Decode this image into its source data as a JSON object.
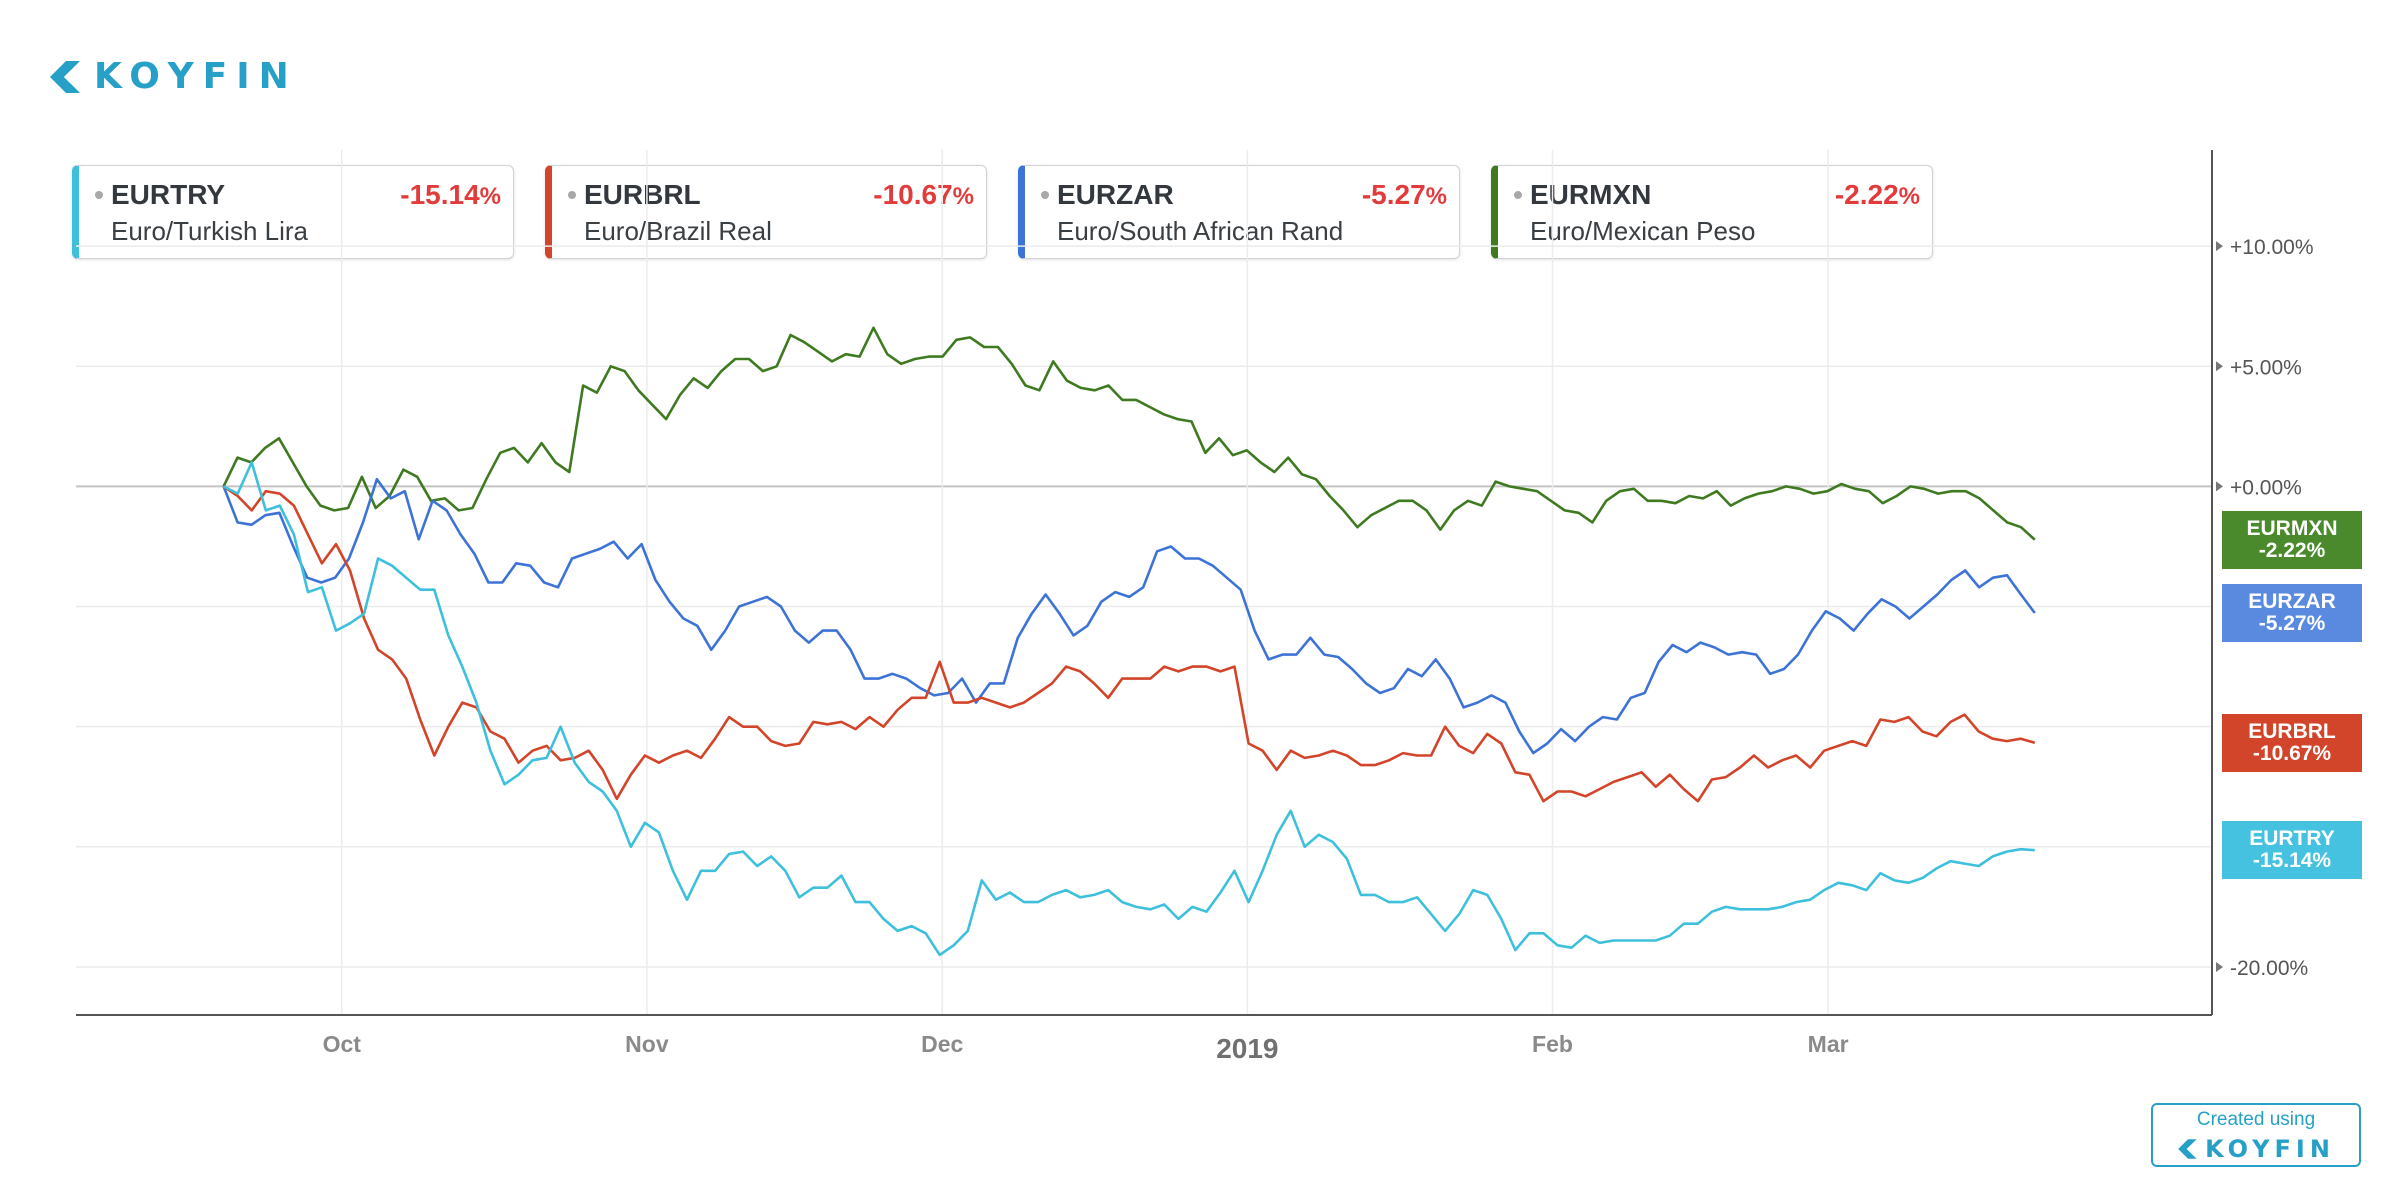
{
  "brand": {
    "name": "KOYFIN",
    "created_label": "Created using",
    "logo_icon": "koyfin-logo-icon",
    "color": "#27a0c7"
  },
  "legend": [
    {
      "symbol": "EURTRY",
      "description": "Euro/Turkish Lira",
      "change": "-15.14",
      "color": "#3ec0dd"
    },
    {
      "symbol": "EURBRL",
      "description": "Euro/Brazil Real",
      "change": "-10.67",
      "color": "#d2452a"
    },
    {
      "symbol": "EURZAR",
      "description": "Euro/South African Rand",
      "change": "-5.27",
      "color": "#3e73d6"
    },
    {
      "symbol": "EURMXN",
      "description": "Euro/Mexican Peso",
      "change": "-2.22",
      "color": "#3f7a21"
    }
  ],
  "badges": [
    {
      "symbol": "EURMXN",
      "value": "-2.22%",
      "color": "#4a8a2c"
    },
    {
      "symbol": "EURZAR",
      "value": "-5.27%",
      "color": "#5a8ae0"
    },
    {
      "symbol": "EURBRL",
      "value": "-10.67%",
      "color": "#d2452a"
    },
    {
      "symbol": "EURTRY",
      "value": "-15.14%",
      "color": "#44c2e0"
    }
  ],
  "chart_data": {
    "type": "line",
    "x_start": "2018-09-19",
    "x_end": "2019-03-22",
    "xlim": [
      "2018-09-04",
      "2019-04-09"
    ],
    "ylim": [
      -22,
      14
    ],
    "unit": "%",
    "yticks": [
      {
        "value": 10,
        "label": "+10.00%"
      },
      {
        "value": 5,
        "label": "+5.00%"
      },
      {
        "value": 0,
        "label": "+0.00%"
      },
      {
        "value": -20,
        "label": "-20.00%"
      }
    ],
    "xticks": [
      {
        "date": "2018-10-01",
        "label": "Oct",
        "major": false
      },
      {
        "date": "2018-11-01",
        "label": "Nov",
        "major": false
      },
      {
        "date": "2018-12-01",
        "label": "Dec",
        "major": false
      },
      {
        "date": "2019-01-01",
        "label": "2019",
        "major": true
      },
      {
        "date": "2019-02-01",
        "label": "Feb",
        "major": false
      },
      {
        "date": "2019-03-01",
        "label": "Mar",
        "major": false
      }
    ],
    "grid": true,
    "series": [
      {
        "name": "EURMXN",
        "color": "#3f7a21",
        "values": [
          0.0,
          1.2,
          1.0,
          1.6,
          2.0,
          1.0,
          0.0,
          -0.8,
          -1.0,
          -0.9,
          0.4,
          -0.9,
          -0.4,
          0.7,
          0.4,
          -0.6,
          -0.5,
          -1.0,
          -0.9,
          0.3,
          1.4,
          1.6,
          1.0,
          1.8,
          1.0,
          0.6,
          4.2,
          3.9,
          5.0,
          4.8,
          4.0,
          3.4,
          2.8,
          3.8,
          4.5,
          4.1,
          4.8,
          5.3,
          5.3,
          4.8,
          5.0,
          6.3,
          6.0,
          5.6,
          5.2,
          5.5,
          5.4,
          6.6,
          5.5,
          5.1,
          5.3,
          5.4,
          5.4,
          6.1,
          6.2,
          5.8,
          5.8,
          5.1,
          4.2,
          4.0,
          5.2,
          4.4,
          4.1,
          4.0,
          4.2,
          3.6,
          3.6,
          3.3,
          3.0,
          2.8,
          2.7,
          1.4,
          2.0,
          1.3,
          1.5,
          1.0,
          0.6,
          1.2,
          0.5,
          0.3,
          -0.4,
          -1.0,
          -1.7,
          -1.2,
          -0.9,
          -0.6,
          -0.6,
          -1.0,
          -1.8,
          -1.0,
          -0.6,
          -0.8,
          0.2,
          0.0,
          -0.1,
          -0.2,
          -0.6,
          -1.0,
          -1.1,
          -1.5,
          -0.6,
          -0.2,
          -0.1,
          -0.6,
          -0.6,
          -0.7,
          -0.4,
          -0.5,
          -0.2,
          -0.8,
          -0.5,
          -0.3,
          -0.2,
          0.0,
          -0.1,
          -0.3,
          -0.2,
          0.1,
          -0.1,
          -0.2,
          -0.7,
          -0.4,
          0.0,
          -0.1,
          -0.3,
          -0.2,
          -0.2,
          -0.5,
          -1.0,
          -1.5,
          -1.7,
          -2.22
        ]
      },
      {
        "name": "EURZAR",
        "color": "#3e73d6",
        "values": [
          0.0,
          -1.5,
          -1.6,
          -1.2,
          -1.1,
          -2.5,
          -3.8,
          -4.0,
          -3.8,
          -3.0,
          -1.5,
          0.3,
          -0.5,
          -0.2,
          -2.2,
          -0.6,
          -1.0,
          -2.0,
          -2.8,
          -4.0,
          -4.0,
          -3.2,
          -3.3,
          -4.0,
          -4.2,
          -3.0,
          -2.8,
          -2.6,
          -2.3,
          -3.0,
          -2.4,
          -3.9,
          -4.8,
          -5.5,
          -5.8,
          -6.8,
          -6.0,
          -5.0,
          -4.8,
          -4.6,
          -5.0,
          -6.0,
          -6.5,
          -6.0,
          -6.0,
          -6.8,
          -8.0,
          -8.0,
          -7.8,
          -8.0,
          -8.4,
          -8.7,
          -8.6,
          -8.0,
          -9.0,
          -8.2,
          -8.2,
          -6.3,
          -5.3,
          -4.5,
          -5.3,
          -6.2,
          -5.8,
          -4.8,
          -4.4,
          -4.6,
          -4.2,
          -2.7,
          -2.5,
          -3.0,
          -3.0,
          -3.3,
          -3.8,
          -4.3,
          -6.0,
          -7.2,
          -7.0,
          -7.0,
          -6.3,
          -7.0,
          -7.1,
          -7.6,
          -8.2,
          -8.6,
          -8.4,
          -7.6,
          -7.9,
          -7.2,
          -8.0,
          -9.2,
          -9.0,
          -8.7,
          -9.0,
          -10.2,
          -11.1,
          -10.7,
          -10.1,
          -10.6,
          -10.0,
          -9.6,
          -9.7,
          -8.8,
          -8.6,
          -7.3,
          -6.6,
          -6.9,
          -6.5,
          -6.7,
          -7.0,
          -6.9,
          -7.0,
          -7.8,
          -7.6,
          -7.0,
          -6.0,
          -5.2,
          -5.5,
          -6.0,
          -5.3,
          -4.7,
          -5.0,
          -5.5,
          -5.0,
          -4.5,
          -3.9,
          -3.5,
          -4.2,
          -3.8,
          -3.7,
          -4.5,
          -5.27
        ]
      },
      {
        "name": "EURBRL",
        "color": "#d2452a",
        "values": [
          0.0,
          -0.4,
          -1.0,
          -0.2,
          -0.3,
          -0.8,
          -2.0,
          -3.2,
          -2.4,
          -3.5,
          -5.5,
          -6.8,
          -7.2,
          -8.0,
          -9.7,
          -11.2,
          -10.0,
          -9.0,
          -9.2,
          -10.2,
          -10.5,
          -11.5,
          -11.0,
          -10.8,
          -11.4,
          -11.3,
          -11.0,
          -11.8,
          -13.0,
          -12.0,
          -11.2,
          -11.5,
          -11.2,
          -11.0,
          -11.3,
          -10.5,
          -9.6,
          -10.0,
          -10.0,
          -10.6,
          -10.8,
          -10.7,
          -9.8,
          -9.9,
          -9.8,
          -10.1,
          -9.6,
          -10.0,
          -9.3,
          -8.8,
          -8.8,
          -7.3,
          -9.0,
          -9.0,
          -8.8,
          -9.0,
          -9.2,
          -9.0,
          -8.6,
          -8.2,
          -7.5,
          -7.7,
          -8.2,
          -8.8,
          -8.0,
          -8.0,
          -8.0,
          -7.5,
          -7.7,
          -7.5,
          -7.5,
          -7.7,
          -7.5,
          -10.7,
          -11.0,
          -11.8,
          -11.0,
          -11.3,
          -11.2,
          -11.0,
          -11.2,
          -11.6,
          -11.6,
          -11.4,
          -11.1,
          -11.2,
          -11.2,
          -10.0,
          -10.8,
          -11.1,
          -10.3,
          -10.7,
          -11.9,
          -12.0,
          -13.1,
          -12.7,
          -12.7,
          -12.9,
          -12.6,
          -12.3,
          -12.1,
          -11.9,
          -12.5,
          -12.0,
          -12.6,
          -13.1,
          -12.2,
          -12.1,
          -11.7,
          -11.2,
          -11.7,
          -11.4,
          -11.2,
          -11.7,
          -11.0,
          -10.8,
          -10.6,
          -10.8,
          -9.7,
          -9.8,
          -9.6,
          -10.2,
          -10.4,
          -9.8,
          -9.5,
          -10.2,
          -10.5,
          -10.6,
          -10.5,
          -10.67
        ]
      },
      {
        "name": "EURTRY",
        "color": "#3ec0dd",
        "values": [
          0.0,
          -0.3,
          1.0,
          -1.0,
          -0.8,
          -2.0,
          -4.4,
          -4.2,
          -6.0,
          -5.7,
          -5.3,
          -3.0,
          -3.3,
          -3.8,
          -4.3,
          -4.3,
          -6.2,
          -7.5,
          -9.0,
          -11.0,
          -12.4,
          -12.0,
          -11.4,
          -11.3,
          -10.0,
          -11.5,
          -12.3,
          -12.7,
          -13.5,
          -15.0,
          -14.0,
          -14.4,
          -16.0,
          -17.2,
          -16.0,
          -16.0,
          -15.3,
          -15.2,
          -15.8,
          -15.4,
          -16.0,
          -17.1,
          -16.7,
          -16.7,
          -16.2,
          -17.3,
          -17.3,
          -18.0,
          -18.5,
          -18.3,
          -18.6,
          -19.5,
          -19.1,
          -18.5,
          -16.4,
          -17.2,
          -16.9,
          -17.3,
          -17.3,
          -17.0,
          -16.8,
          -17.1,
          -17.0,
          -16.8,
          -17.3,
          -17.5,
          -17.6,
          -17.4,
          -18.0,
          -17.5,
          -17.7,
          -16.9,
          -16.0,
          -17.3,
          -16.0,
          -14.5,
          -13.5,
          -15.0,
          -14.5,
          -14.8,
          -15.5,
          -17.0,
          -17.0,
          -17.3,
          -17.3,
          -17.1,
          -17.8,
          -18.5,
          -17.8,
          -16.8,
          -17.0,
          -18.0,
          -19.3,
          -18.6,
          -18.6,
          -19.1,
          -19.2,
          -18.7,
          -19.0,
          -18.9,
          -18.9,
          -18.9,
          -18.9,
          -18.7,
          -18.2,
          -18.2,
          -17.7,
          -17.5,
          -17.6,
          -17.6,
          -17.6,
          -17.5,
          -17.3,
          -17.2,
          -16.8,
          -16.5,
          -16.6,
          -16.8,
          -16.1,
          -16.4,
          -16.5,
          -16.3,
          -15.9,
          -15.6,
          -15.7,
          -15.8,
          -15.4,
          -15.2,
          -15.1,
          -15.14
        ]
      }
    ]
  }
}
